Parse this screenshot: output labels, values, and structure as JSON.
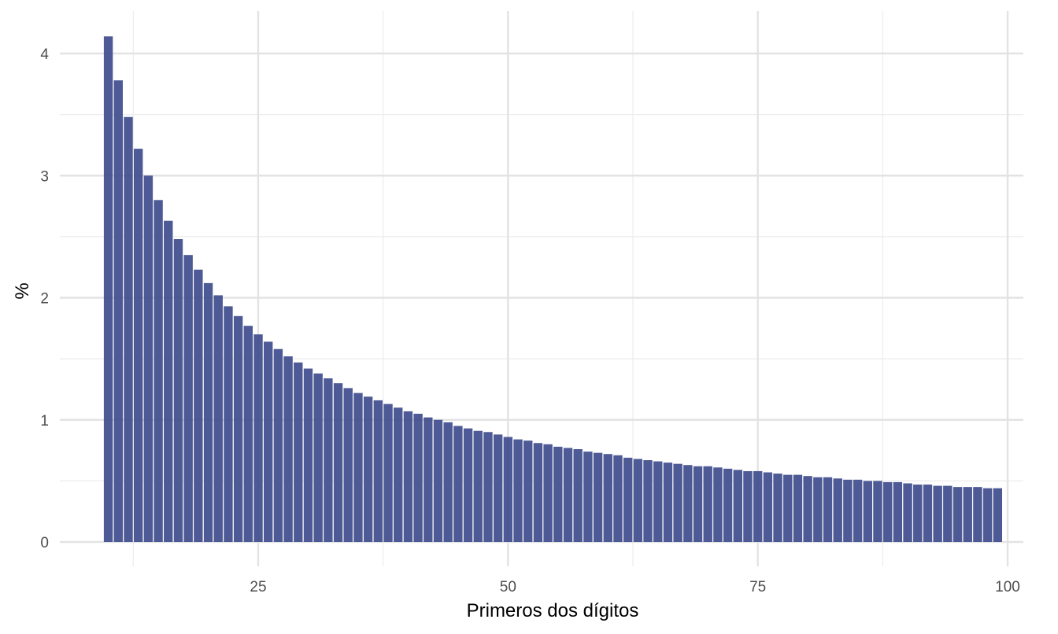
{
  "chart_data": {
    "type": "bar",
    "title": "",
    "xlabel": "Primeros dos dígitos",
    "ylabel": "%",
    "x_ticks": [
      25,
      50,
      75,
      100
    ],
    "y_ticks": [
      0,
      1,
      2,
      3,
      4
    ],
    "xlim": [
      2.5,
      102
    ],
    "ylim": [
      0,
      4.25
    ],
    "grid": true,
    "bar_color": "#3f4c8c",
    "categories": [
      10,
      11,
      12,
      13,
      14,
      15,
      16,
      17,
      18,
      19,
      20,
      21,
      22,
      23,
      24,
      25,
      26,
      27,
      28,
      29,
      30,
      31,
      32,
      33,
      34,
      35,
      36,
      37,
      38,
      39,
      40,
      41,
      42,
      43,
      44,
      45,
      46,
      47,
      48,
      49,
      50,
      51,
      52,
      53,
      54,
      55,
      56,
      57,
      58,
      59,
      60,
      61,
      62,
      63,
      64,
      65,
      66,
      67,
      68,
      69,
      70,
      71,
      72,
      73,
      74,
      75,
      76,
      77,
      78,
      79,
      80,
      81,
      82,
      83,
      84,
      85,
      86,
      87,
      88,
      89,
      90,
      91,
      92,
      93,
      94,
      95,
      96,
      97,
      98,
      99
    ],
    "values": [
      4.14,
      3.78,
      3.48,
      3.22,
      3.0,
      2.8,
      2.63,
      2.48,
      2.35,
      2.23,
      2.12,
      2.02,
      1.93,
      1.85,
      1.77,
      1.7,
      1.64,
      1.58,
      1.52,
      1.47,
      1.42,
      1.38,
      1.34,
      1.3,
      1.26,
      1.22,
      1.19,
      1.16,
      1.13,
      1.1,
      1.07,
      1.05,
      1.02,
      1.0,
      0.98,
      0.95,
      0.93,
      0.91,
      0.9,
      0.88,
      0.86,
      0.84,
      0.83,
      0.81,
      0.8,
      0.78,
      0.77,
      0.76,
      0.74,
      0.73,
      0.72,
      0.71,
      0.69,
      0.68,
      0.67,
      0.66,
      0.65,
      0.64,
      0.63,
      0.62,
      0.62,
      0.61,
      0.6,
      0.59,
      0.58,
      0.58,
      0.57,
      0.56,
      0.55,
      0.55,
      0.54,
      0.53,
      0.53,
      0.52,
      0.51,
      0.51,
      0.5,
      0.5,
      0.49,
      0.49,
      0.48,
      0.47,
      0.47,
      0.46,
      0.46,
      0.45,
      0.45,
      0.45,
      0.44,
      0.44
    ]
  }
}
